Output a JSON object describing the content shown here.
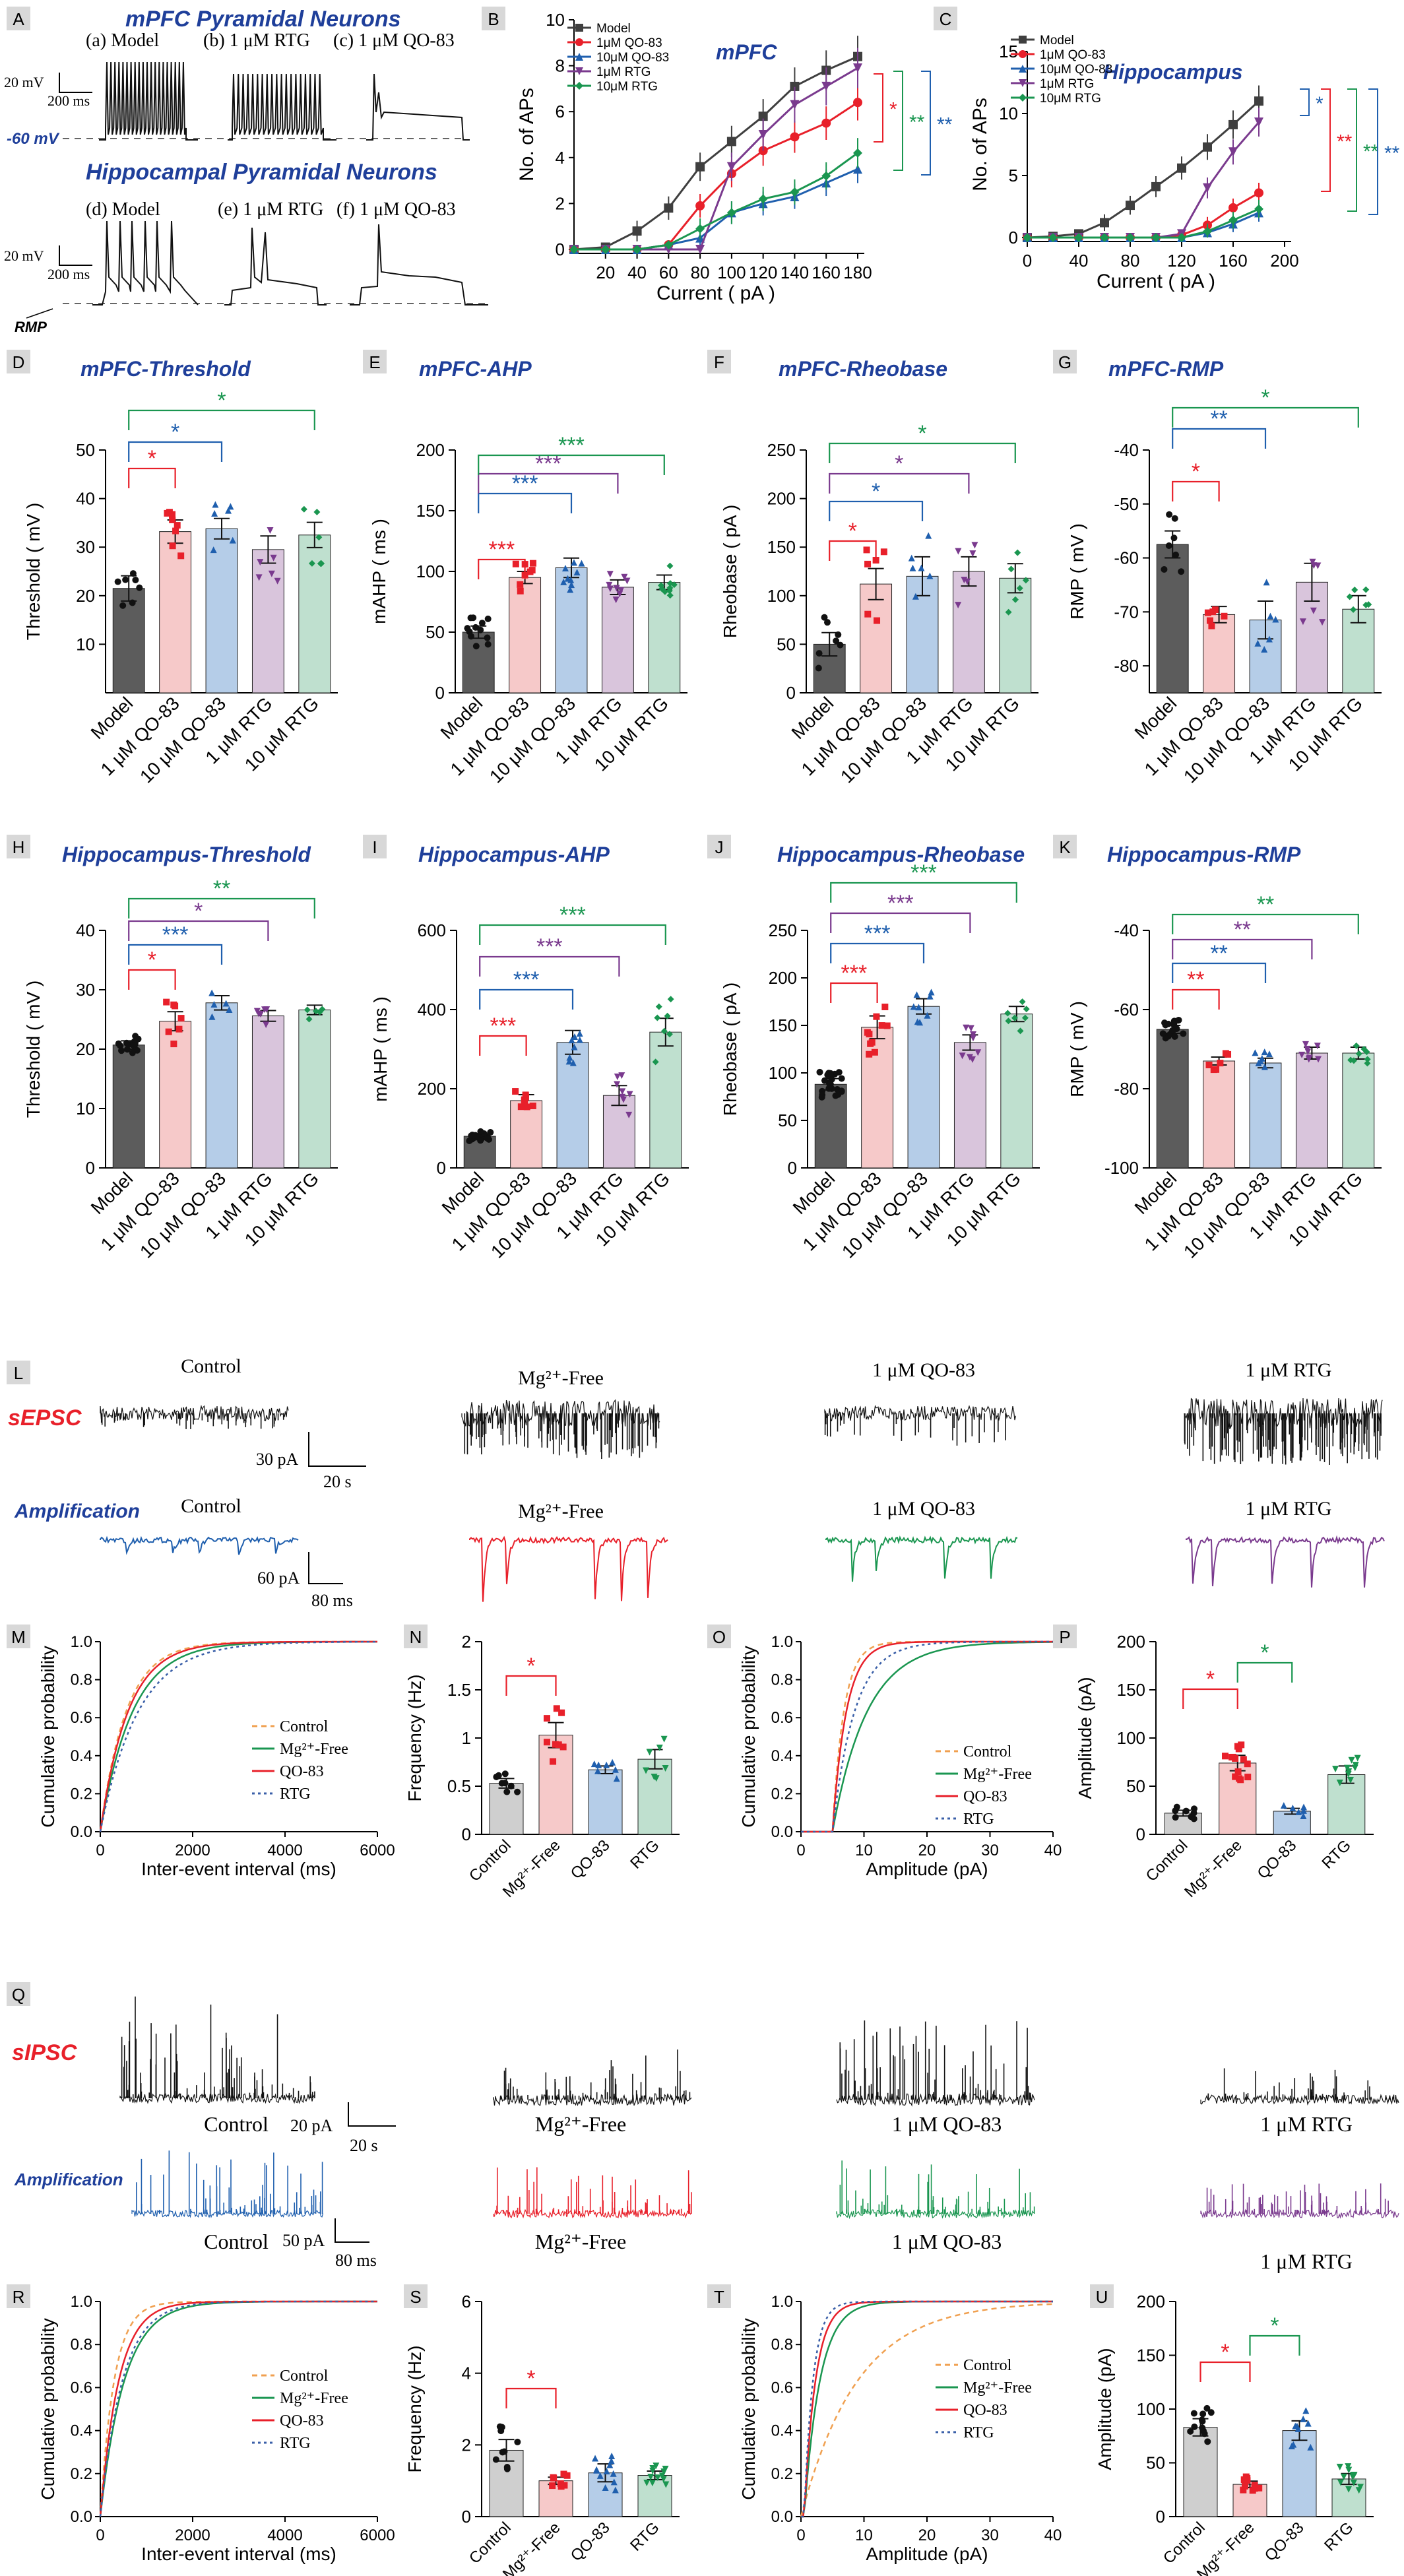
{
  "colors": {
    "model": "#3f3f3f",
    "qo1": "#e8202a",
    "qo10": "#1f5fae",
    "rtg1": "#7a3a8e",
    "rtg10": "#1a9650",
    "barModel": "#5c5c5c",
    "barQo1": "#f6c9c9",
    "barQo10": "#b5cde8",
    "barRtg1": "#d9c5dc",
    "barRtg10": "#bfe0cf",
    "panelTitle": "#1f3f9a",
    "sRed": "#e8202a",
    "sBlue": "#1f3f9a",
    "green": "#1a9650",
    "purple": "#7a3a8e",
    "ctrlBar": "#cfcfcf",
    "mgBar": "#f6c9c9",
    "qoBar": "#b5cde8",
    "rtgBar": "#bfe0cf"
  },
  "panelA": {
    "letter": "A",
    "title1": "mPFC Pyramidal Neurons",
    "title2": "Hippocampal Pyramidal Neurons",
    "labels1": [
      "(a) Model",
      "(b) 1 μM RTG",
      "(c) 1 μM QO-83"
    ],
    "labels2": [
      "(d) Model",
      "(e) 1 μM RTG",
      "(f) 1 μM QO-83"
    ],
    "scaleV": "20 mV",
    "scaleT": "200 ms",
    "rmpLabel": "-60 mV",
    "rmp": "RMP"
  },
  "chart_data": [
    {
      "id": "B",
      "type": "line",
      "title": "mPFC",
      "xlabel": "Current ( pA )",
      "ylabel": "No. of APs",
      "xlim": [
        0,
        180
      ],
      "ylim": [
        0,
        10
      ],
      "xticks": [
        20,
        40,
        60,
        80,
        100,
        120,
        140,
        160,
        180
      ],
      "yticks": [
        0,
        2,
        4,
        6,
        8,
        10
      ],
      "x": [
        0,
        20,
        40,
        60,
        80,
        100,
        120,
        140,
        160,
        180
      ],
      "series": [
        {
          "name": "Model",
          "values": [
            0,
            0.1,
            0.8,
            1.8,
            3.6,
            4.7,
            5.8,
            7.1,
            7.8,
            8.4
          ]
        },
        {
          "name": "1μM QO-83",
          "values": [
            0,
            0,
            0,
            0.2,
            1.9,
            3.3,
            4.3,
            4.9,
            5.5,
            6.4
          ]
        },
        {
          "name": "10μM QO-83",
          "values": [
            0,
            0,
            0,
            0.2,
            0.5,
            1.6,
            2.0,
            2.3,
            2.9,
            3.5
          ]
        },
        {
          "name": "1μM RTG",
          "values": [
            0,
            0,
            0,
            0,
            0,
            3.6,
            5.0,
            6.3,
            7.1,
            7.9
          ]
        },
        {
          "name": "10μM RTG",
          "values": [
            0,
            0,
            0,
            0.2,
            0.9,
            1.6,
            2.2,
            2.5,
            3.2,
            4.2
          ]
        }
      ],
      "sig": [
        "*",
        "**",
        "**"
      ]
    },
    {
      "id": "C",
      "type": "line",
      "title": "Hippocampus",
      "xlabel": "Current ( pA )",
      "ylabel": "No. of APs",
      "xlim": [
        0,
        200
      ],
      "ylim": [
        0,
        15
      ],
      "xticks": [
        0,
        40,
        80,
        120,
        160,
        200
      ],
      "yticks": [
        0,
        5,
        10,
        15
      ],
      "x": [
        0,
        20,
        40,
        60,
        80,
        100,
        120,
        140,
        160,
        180
      ],
      "series": [
        {
          "name": "Model",
          "values": [
            0,
            0.1,
            0.3,
            1.2,
            2.6,
            4.1,
            5.6,
            7.3,
            9.1,
            11
          ]
        },
        {
          "name": "1μM QO-83",
          "values": [
            0,
            0,
            0,
            0,
            0,
            0,
            0.2,
            1.0,
            2.4,
            3.6
          ]
        },
        {
          "name": "10μM QO-83",
          "values": [
            0,
            0,
            0,
            0,
            0,
            0,
            0,
            0.4,
            1.1,
            2.0
          ]
        },
        {
          "name": "1μM RTG",
          "values": [
            0,
            0,
            0,
            0,
            0,
            0,
            0.3,
            4.0,
            6.9,
            9.3
          ]
        },
        {
          "name": "10μM RTG",
          "values": [
            0,
            0,
            0,
            0,
            0,
            0,
            0,
            0.5,
            1.4,
            2.3
          ]
        }
      ],
      "sig": [
        "*",
        "**",
        "**",
        "**"
      ]
    },
    {
      "id": "D",
      "type": "bar",
      "title": "mPFC-Threshold",
      "ylabel": "Threshold ( mV )",
      "categories": [
        "Model",
        "1 μM QO-83",
        "10 μM QO-83",
        "1 μM RTG",
        "10 μM RTG"
      ],
      "values": [
        21.5,
        33.2,
        33.8,
        29.5,
        32.5
      ],
      "err": [
        2.6,
        2.4,
        2.1,
        2.8,
        2.6
      ],
      "ylim": [
        0,
        50
      ],
      "yticks": [
        10,
        20,
        30,
        40,
        50
      ],
      "sig": [
        "*",
        "*",
        "*"
      ]
    },
    {
      "id": "E",
      "type": "bar",
      "title": "mPFC-AHP",
      "ylabel": "mAHP ( ms )",
      "categories": [
        "Model",
        "1 μM QO-83",
        "10 μM QO-83",
        "1 μM RTG",
        "10 μM RTG"
      ],
      "values": [
        50,
        95,
        103,
        87,
        91
      ],
      "err": [
        5,
        5,
        8,
        6,
        6
      ],
      "ylim": [
        0,
        200
      ],
      "yticks": [
        0,
        50,
        100,
        150,
        200
      ],
      "sig": [
        "***",
        "***",
        "***",
        "***"
      ]
    },
    {
      "id": "F",
      "type": "bar",
      "title": "mPFC-Rheobase",
      "ylabel": "Rheobase ( pA )",
      "categories": [
        "Model",
        "1 μM QO-83",
        "10 μM QO-83",
        "1 μM RTG",
        "10 μM RTG"
      ],
      "values": [
        50,
        112,
        120,
        125,
        118
      ],
      "err": [
        12,
        16,
        20,
        15,
        15
      ],
      "ylim": [
        0,
        250
      ],
      "yticks": [
        0,
        50,
        100,
        150,
        200,
        250
      ],
      "sig": [
        "*",
        "*",
        "*",
        "*"
      ]
    },
    {
      "id": "G",
      "type": "bar",
      "title": "mPFC-RMP",
      "ylabel": "RMP ( mV )",
      "categories": [
        "Model",
        "1 μM QO-83",
        "10 μM QO-83",
        "1 μM RTG",
        "10 μM RTG"
      ],
      "values": [
        -57.5,
        -70.5,
        -71.5,
        -64.5,
        -69.5
      ],
      "err": [
        2.5,
        1.5,
        3.5,
        3.5,
        2.5
      ],
      "ylim": [
        -85,
        -40
      ],
      "yticks": [
        -80,
        -70,
        -60,
        -50,
        -40
      ],
      "sig": [
        "*",
        "**",
        "*"
      ]
    },
    {
      "id": "H",
      "type": "bar",
      "title": "Hippocampus-Threshold",
      "ylabel": "Threshold ( mV )",
      "categories": [
        "Model",
        "1 μM QO-83",
        "10 μM QO-83",
        "1 μM RTG",
        "10 μM RTG"
      ],
      "values": [
        20.7,
        24.7,
        27.8,
        25.6,
        26.6
      ],
      "err": [
        0.7,
        1.6,
        1.2,
        0.9,
        0.8
      ],
      "ylim": [
        0,
        40
      ],
      "yticks": [
        0,
        10,
        20,
        30,
        40
      ],
      "sig": [
        "*",
        "***",
        "*",
        "**"
      ]
    },
    {
      "id": "I",
      "type": "bar",
      "title": "Hippocampus-AHP",
      "ylabel": "mAHP ( ms )",
      "categories": [
        "Model",
        "1 μM QO-83",
        "10 μM QO-83",
        "1 μM RTG",
        "10 μM RTG"
      ],
      "values": [
        80,
        170,
        317,
        183,
        343
      ],
      "err": [
        5,
        15,
        30,
        25,
        35
      ],
      "ylim": [
        0,
        600
      ],
      "yticks": [
        0,
        200,
        400,
        600
      ],
      "sig": [
        "***",
        "***",
        "***",
        "***"
      ]
    },
    {
      "id": "J",
      "type": "bar",
      "title": "Hippocampus-Rheobase",
      "ylabel": "Rheobase ( pA )",
      "categories": [
        "Model",
        "1 μM QO-83",
        "10 μM QO-83",
        "1 μM RTG",
        "10 μM RTG"
      ],
      "values": [
        88,
        148,
        170,
        132,
        162
      ],
      "err": [
        6,
        12,
        8,
        8,
        8
      ],
      "ylim": [
        0,
        250
      ],
      "yticks": [
        0,
        50,
        100,
        150,
        200,
        250
      ],
      "sig": [
        "***",
        "***",
        "***",
        "***"
      ]
    },
    {
      "id": "K",
      "type": "bar",
      "title": "Hippocampus-RMP",
      "ylabel": "RMP ( mV )",
      "categories": [
        "Model",
        "1 μM QO-83",
        "10 μM QO-83",
        "1 μM RTG",
        "10 μM RTG"
      ],
      "values": [
        -65,
        -73,
        -73.5,
        -71,
        -71
      ],
      "err": [
        1,
        1,
        1.2,
        1.5,
        1.5
      ],
      "ylim": [
        -100,
        -40
      ],
      "yticks": [
        -100,
        -80,
        -60,
        -40
      ],
      "sig": [
        "**",
        "**",
        "**",
        "**"
      ]
    },
    {
      "id": "M",
      "type": "line",
      "xlabel": "Inter-event interval (ms)",
      "ylabel": "Cumulative probability",
      "xlim": [
        0,
        6000
      ],
      "ylim": [
        0,
        1
      ],
      "xticks": [
        0,
        2000,
        4000,
        6000
      ],
      "yticks": [
        0,
        0.2,
        0.4,
        0.6,
        0.8,
        1.0
      ],
      "legend": [
        "Control",
        "Mg²⁺-Free",
        "QO-83",
        "RTG"
      ]
    },
    {
      "id": "N",
      "type": "bar",
      "ylabel": "Frequency (Hz)",
      "categories": [
        "Control",
        "Mg²⁺-Free",
        "QO-83",
        "RTG"
      ],
      "values": [
        0.53,
        1.03,
        0.67,
        0.78
      ],
      "err": [
        0.05,
        0.13,
        0.04,
        0.1
      ],
      "ylim": [
        0,
        2
      ],
      "yticks": [
        0,
        0.5,
        1.0,
        1.5,
        2.0
      ],
      "sig": [
        "*"
      ]
    },
    {
      "id": "O",
      "type": "line",
      "xlabel": "Amplitude (pA)",
      "ylabel": "Cumulative probability",
      "xlim": [
        0,
        40
      ],
      "ylim": [
        0,
        1
      ],
      "xticks": [
        0,
        10,
        20,
        30,
        40
      ],
      "yticks": [
        0,
        0.2,
        0.4,
        0.6,
        0.8,
        1.0
      ],
      "legend": [
        "Control",
        "Mg²⁺-Free",
        "QO-83",
        "RTG"
      ]
    },
    {
      "id": "P",
      "type": "bar",
      "ylabel": "Amplitude (pA)",
      "categories": [
        "Control",
        "Mg²⁺-Free",
        "QO-83",
        "RTG"
      ],
      "values": [
        22,
        74,
        24,
        62
      ],
      "err": [
        3,
        8,
        3,
        9
      ],
      "ylim": [
        0,
        200
      ],
      "yticks": [
        0,
        50,
        100,
        150,
        200
      ],
      "sig": [
        "*",
        "*"
      ]
    },
    {
      "id": "R",
      "type": "line",
      "xlabel": "Inter-event interval (ms)",
      "ylabel": "Cumulative probability",
      "xlim": [
        0,
        6000
      ],
      "ylim": [
        0,
        1
      ],
      "xticks": [
        0,
        2000,
        4000,
        6000
      ],
      "yticks": [
        0,
        0.2,
        0.4,
        0.6,
        0.8,
        1.0
      ],
      "legend": [
        "Control",
        "Mg²⁺-Free",
        "QO-83",
        "RTG"
      ]
    },
    {
      "id": "S",
      "type": "bar",
      "ylabel": "Frequency (Hz)",
      "categories": [
        "Control",
        "Mg²⁺-Free",
        "QO-83",
        "RTG"
      ],
      "values": [
        1.85,
        1.0,
        1.22,
        1.15
      ],
      "err": [
        0.3,
        0.1,
        0.25,
        0.12
      ],
      "ylim": [
        0,
        6
      ],
      "yticks": [
        0,
        2,
        4,
        6
      ],
      "sig": [
        "*"
      ]
    },
    {
      "id": "T",
      "type": "line",
      "xlabel": "Amplitude (pA)",
      "ylabel": "Cumulative probability",
      "xlim": [
        0,
        40
      ],
      "ylim": [
        0,
        1
      ],
      "xticks": [
        0,
        10,
        20,
        30,
        40
      ],
      "yticks": [
        0,
        0.2,
        0.4,
        0.6,
        0.8,
        1.0
      ],
      "legend": [
        "Control",
        "Mg²⁺-Free",
        "QO-83",
        "RTG"
      ]
    },
    {
      "id": "U",
      "type": "bar",
      "ylabel": "Amplitude (pA)",
      "categories": [
        "Control",
        "Mg²⁺-Free",
        "QO-83",
        "RTG"
      ],
      "values": [
        83,
        30,
        80,
        35
      ],
      "err": [
        8,
        3,
        9,
        5
      ],
      "ylim": [
        0,
        200
      ],
      "yticks": [
        0,
        50,
        100,
        150,
        200
      ],
      "sig": [
        "*",
        "*"
      ]
    }
  ],
  "panelL": {
    "letter": "L",
    "sEPSC": "sEPSC",
    "amp": "Amplification",
    "labelsTop": [
      "Control",
      "Mg²⁺-Free",
      "1 μM QO-83",
      "1 μM RTG"
    ],
    "labelsBottom": [
      "Control",
      "Mg²⁺-Free",
      "1 μM QO-83",
      "1 μM RTG"
    ],
    "scaleTopV": "30 pA",
    "scaleTopT": "20 s",
    "scaleBotV": "60 pA",
    "scaleBotT": "80 ms"
  },
  "panelQ": {
    "letter": "Q",
    "sIPSC": "sIPSC",
    "amp": "Amplification",
    "labelsTop": [
      "Control",
      "Mg²⁺-Free",
      "1 μM QO-83",
      "1 μM RTG"
    ],
    "labelsBottom": [
      "Control",
      "Mg²⁺-Free",
      "1 μM QO-83",
      "1 μM RTG"
    ],
    "scaleTopV": "20 pA",
    "scaleTopT": "20 s",
    "scaleBotV": "50 pA",
    "scaleBotT": "80 ms"
  }
}
